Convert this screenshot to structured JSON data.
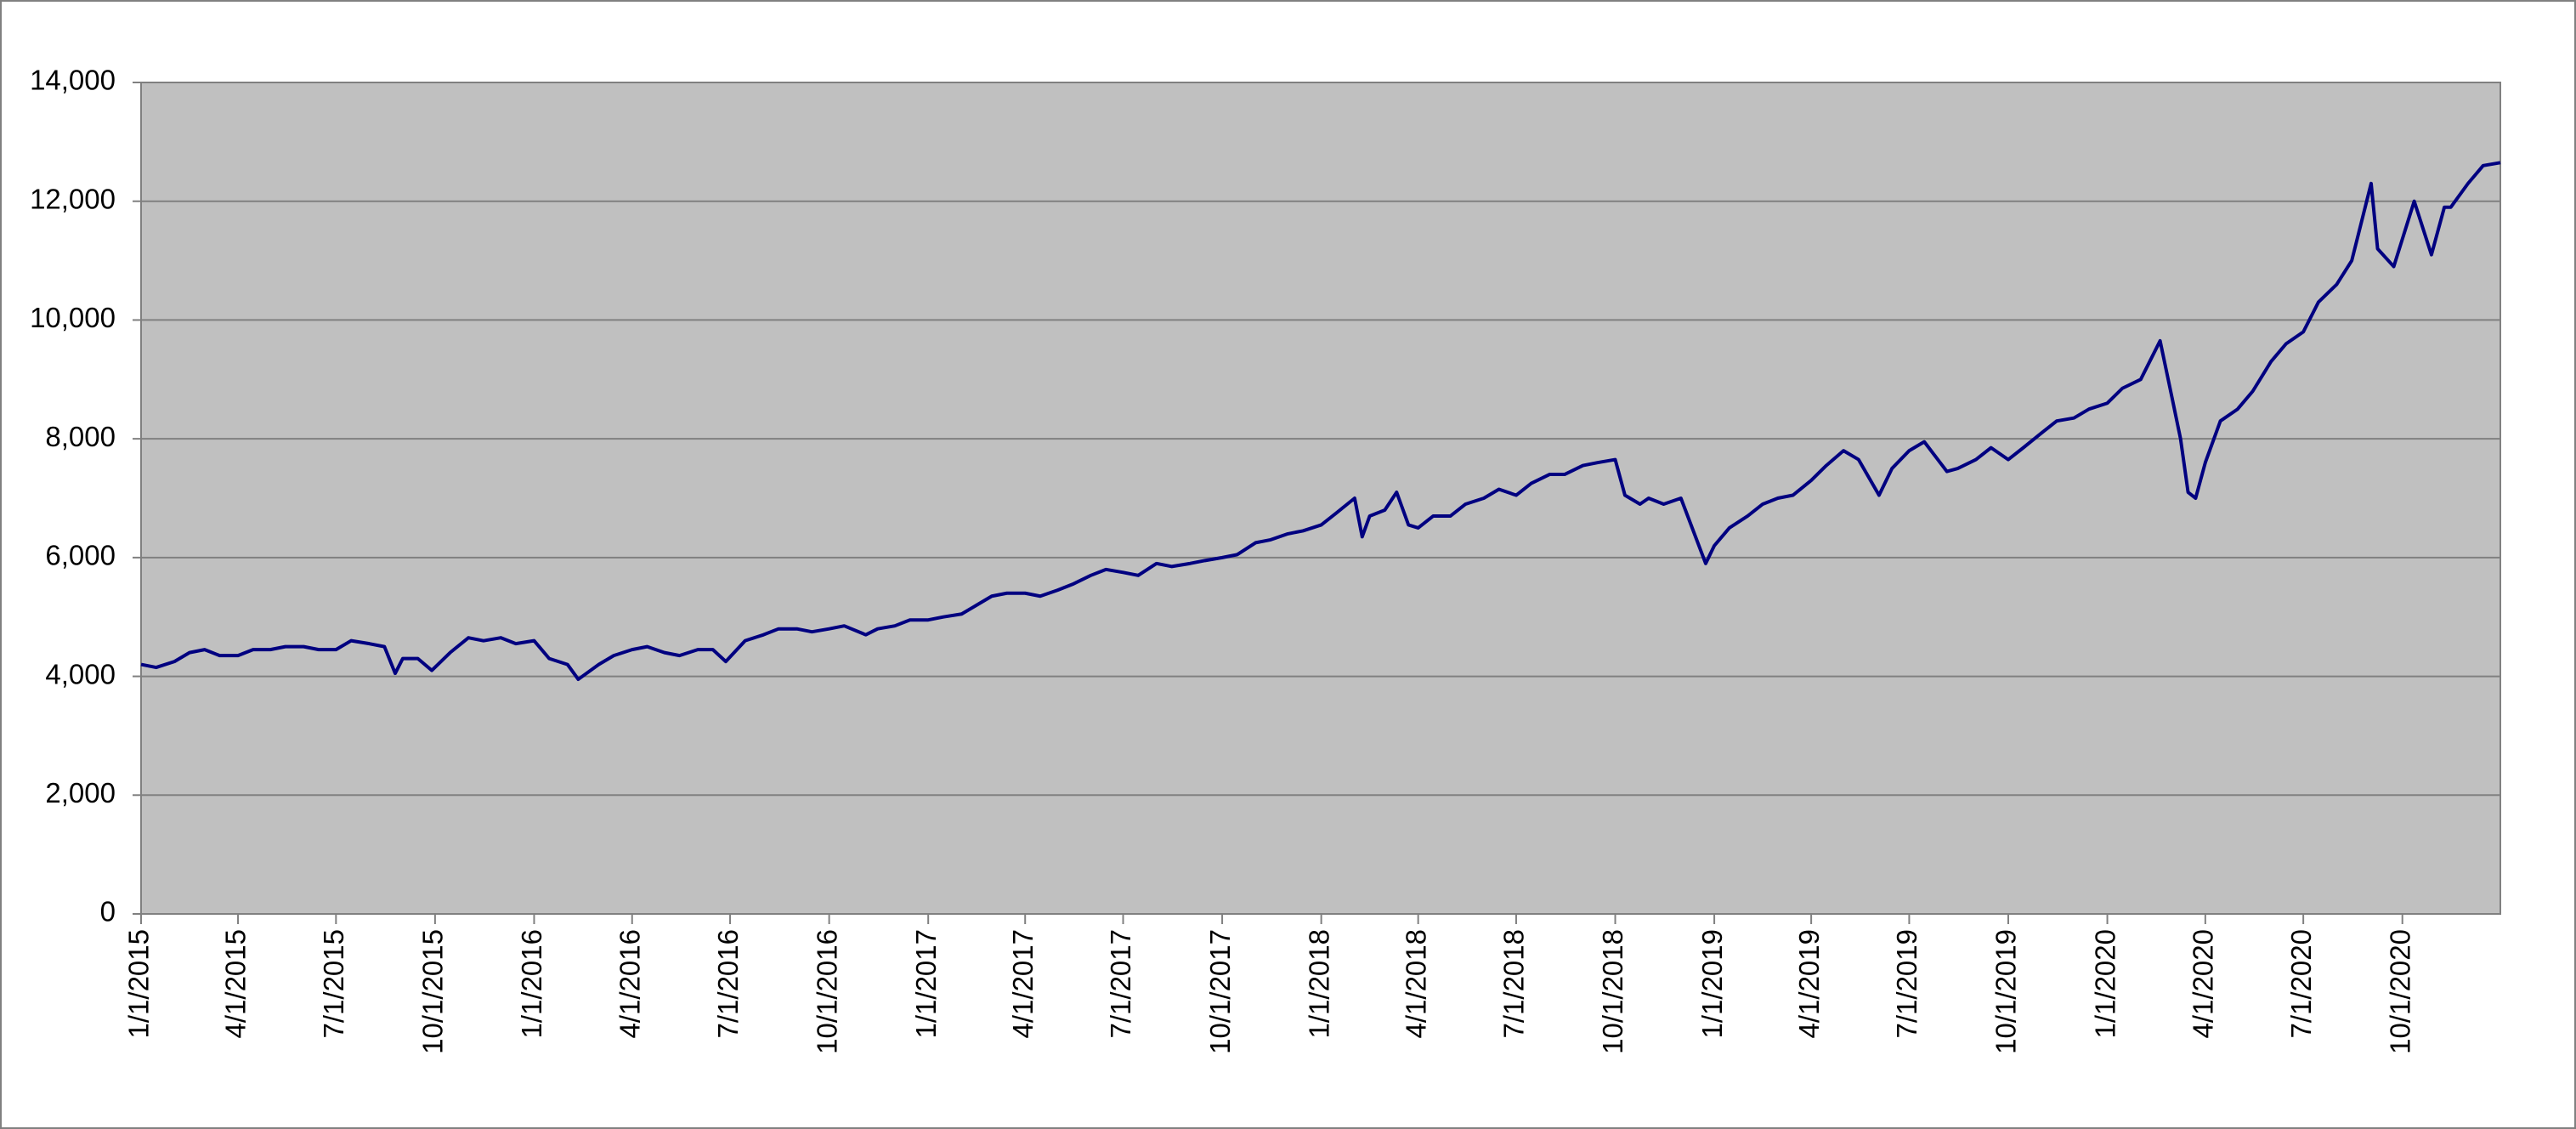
{
  "chart_data": {
    "type": "line",
    "x": [
      "1/1/2015",
      "1/15/2015",
      "2/1/2015",
      "2/15/2015",
      "3/1/2015",
      "3/15/2015",
      "4/1/2015",
      "4/15/2015",
      "5/1/2015",
      "5/15/2015",
      "6/1/2015",
      "6/15/2015",
      "7/1/2015",
      "7/15/2015",
      "8/1/2015",
      "8/15/2015",
      "8/25/2015",
      "9/1/2015",
      "9/15/2015",
      "9/28/2015",
      "10/15/2015",
      "11/1/2015",
      "11/15/2015",
      "12/1/2015",
      "12/15/2015",
      "1/1/2016",
      "1/15/2016",
      "2/1/2016",
      "2/11/2016",
      "3/1/2016",
      "3/15/2016",
      "4/1/2016",
      "4/15/2016",
      "5/1/2016",
      "5/15/2016",
      "6/1/2016",
      "6/15/2016",
      "6/27/2016",
      "7/15/2016",
      "8/1/2016",
      "8/15/2016",
      "9/1/2016",
      "9/15/2016",
      "10/1/2016",
      "10/15/2016",
      "11/4/2016",
      "11/15/2016",
      "12/1/2016",
      "12/15/2016",
      "1/1/2017",
      "1/15/2017",
      "2/1/2017",
      "2/15/2017",
      "3/1/2017",
      "3/15/2017",
      "4/1/2017",
      "4/15/2017",
      "5/1/2017",
      "5/15/2017",
      "6/1/2017",
      "6/15/2017",
      "7/1/2017",
      "7/15/2017",
      "8/1/2017",
      "8/15/2017",
      "9/1/2017",
      "9/15/2017",
      "10/1/2017",
      "10/15/2017",
      "11/1/2017",
      "11/15/2017",
      "12/1/2017",
      "12/15/2017",
      "1/1/2018",
      "1/15/2018",
      "2/1/2018",
      "2/8/2018",
      "2/15/2018",
      "3/1/2018",
      "3/12/2018",
      "3/23/2018",
      "4/1/2018",
      "4/15/2018",
      "5/1/2018",
      "5/15/2018",
      "6/1/2018",
      "6/15/2018",
      "7/1/2018",
      "7/15/2018",
      "8/1/2018",
      "8/15/2018",
      "9/1/2018",
      "9/15/2018",
      "10/1/2018",
      "10/10/2018",
      "10/24/2018",
      "11/1/2018",
      "11/15/2018",
      "12/1/2018",
      "12/24/2018",
      "1/1/2019",
      "1/15/2019",
      "2/1/2019",
      "2/15/2019",
      "3/1/2019",
      "3/15/2019",
      "4/1/2019",
      "4/15/2019",
      "5/1/2019",
      "5/15/2019",
      "6/3/2019",
      "6/15/2019",
      "7/1/2019",
      "7/15/2019",
      "8/5/2019",
      "8/15/2019",
      "9/1/2019",
      "9/15/2019",
      "10/1/2019",
      "10/15/2019",
      "11/1/2019",
      "11/15/2019",
      "12/1/2019",
      "12/15/2019",
      "1/1/2020",
      "1/15/2020",
      "2/1/2020",
      "2/19/2020",
      "3/1/2020",
      "3/9/2020",
      "3/16/2020",
      "3/23/2020",
      "4/1/2020",
      "4/15/2020",
      "5/1/2020",
      "5/15/2020",
      "6/1/2020",
      "6/15/2020",
      "7/1/2020",
      "7/15/2020",
      "8/1/2020",
      "8/15/2020",
      "9/2/2020",
      "9/8/2020",
      "9/23/2020",
      "10/12/2020",
      "10/28/2020",
      "11/9/2020",
      "11/15/2020",
      "12/1/2020",
      "12/15/2020",
      "12/31/2020"
    ],
    "values": [
      4200,
      4150,
      4250,
      4400,
      4450,
      4350,
      4350,
      4450,
      4450,
      4500,
      4500,
      4450,
      4450,
      4600,
      4550,
      4500,
      4050,
      4300,
      4300,
      4100,
      4400,
      4650,
      4600,
      4650,
      4550,
      4600,
      4300,
      4200,
      3950,
      4200,
      4350,
      4450,
      4500,
      4400,
      4350,
      4450,
      4450,
      4250,
      4600,
      4700,
      4800,
      4800,
      4750,
      4800,
      4850,
      4700,
      4800,
      4850,
      4950,
      4950,
      5000,
      5050,
      5200,
      5350,
      5400,
      5400,
      5350,
      5450,
      5550,
      5700,
      5800,
      5750,
      5700,
      5900,
      5850,
      5900,
      5950,
      6000,
      6050,
      6250,
      6300,
      6400,
      6450,
      6550,
      6750,
      7000,
      6350,
      6700,
      6800,
      7100,
      6550,
      6500,
      6700,
      6700,
      6900,
      7000,
      7150,
      7050,
      7250,
      7400,
      7400,
      7550,
      7600,
      7650,
      7050,
      6900,
      7000,
      6900,
      7000,
      5900,
      6200,
      6500,
      6700,
      6900,
      7000,
      7050,
      7300,
      7550,
      7800,
      7650,
      7050,
      7500,
      7800,
      7950,
      7450,
      7500,
      7650,
      7850,
      7650,
      7850,
      8100,
      8300,
      8350,
      8500,
      8600,
      8850,
      9000,
      9650,
      8700,
      8000,
      7100,
      7000,
      7600,
      8300,
      8500,
      8800,
      9300,
      9600,
      9800,
      10300,
      10600,
      11000,
      12300,
      11200,
      10900,
      12000,
      11100,
      11900,
      11900,
      12300,
      12600,
      12650
    ],
    "color": "#000080",
    "xlim": [
      "1/1/2015",
      "12/31/2020"
    ],
    "xticks": [
      "1/1/2015",
      "4/1/2015",
      "7/1/2015",
      "10/1/2015",
      "1/1/2016",
      "4/1/2016",
      "7/1/2016",
      "10/1/2016",
      "1/1/2017",
      "4/1/2017",
      "7/1/2017",
      "10/1/2017",
      "1/1/2018",
      "4/1/2018",
      "7/1/2018",
      "10/1/2018",
      "1/1/2019",
      "4/1/2019",
      "7/1/2019",
      "10/1/2019",
      "1/1/2020",
      "4/1/2020",
      "7/1/2020",
      "10/1/2020"
    ],
    "ylim": [
      0,
      14000
    ],
    "yticks": [
      0,
      {
        "value": 2000,
        "label": "2,000"
      },
      {
        "value": 4000,
        "label": "4,000"
      },
      {
        "value": 6000,
        "label": "6,000"
      },
      {
        "value": 8000,
        "label": "8,000"
      },
      {
        "value": 10000,
        "label": "10,000"
      },
      {
        "value": 12000,
        "label": "12,000"
      },
      {
        "value": 14000,
        "label": "14,000"
      }
    ],
    "grid": true
  }
}
